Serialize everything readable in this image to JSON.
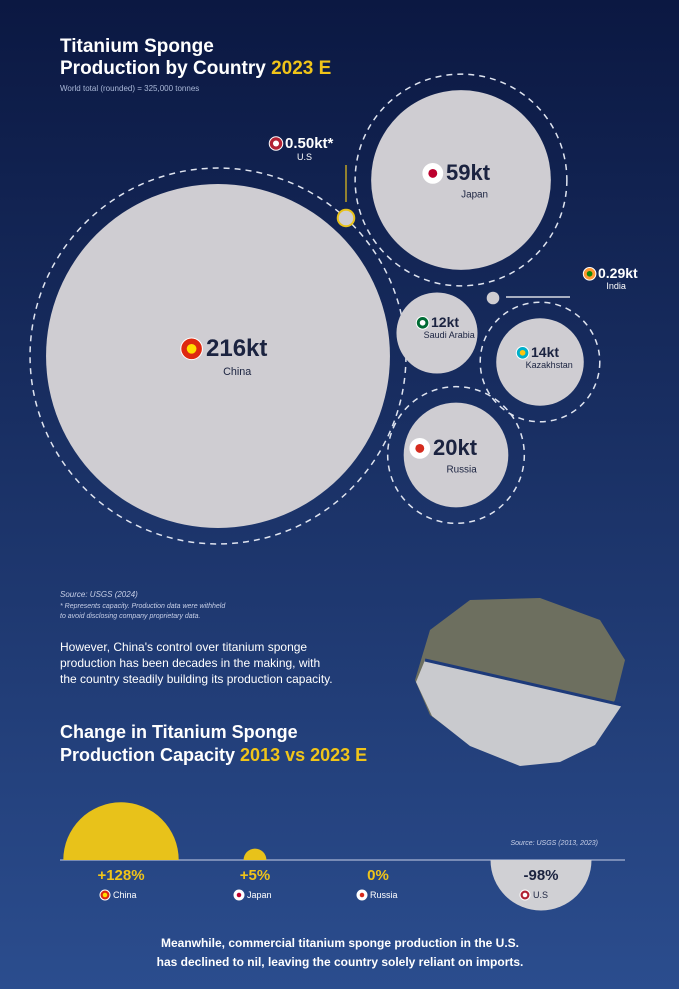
{
  "chart_data": [
    {
      "type": "bubble",
      "title_lines": [
        "Titanium Sponge",
        "Production by Country"
      ],
      "title_highlight": "2023 E",
      "subtitle": "World total (rounded) = 325,000 tonnes",
      "categories": [
        "China",
        "Japan",
        "U.S",
        "India",
        "Saudi Arabia",
        "Kazakhstan",
        "Russia"
      ],
      "values": [
        216,
        59,
        0.5,
        0.29,
        12,
        14,
        20
      ],
      "value_labels": [
        "216kt",
        "59kt",
        "0.50kt*",
        "0.29kt",
        "12kt",
        "14kt",
        "20kt"
      ],
      "color": "#cfcdd2"
    },
    {
      "type": "semicircle",
      "title_lines": [
        "Change in Titanium Sponge",
        "Production Capacity"
      ],
      "title_highlight": "2013 vs 2023 E",
      "categories": [
        "China",
        "Japan",
        "Russia",
        "U.S"
      ],
      "values": [
        128,
        5,
        0,
        -98
      ],
      "value_labels": [
        "+128%",
        "+5%",
        "0%",
        "-98%"
      ],
      "colors": [
        "#e8c21a",
        "#d0d0d4"
      ],
      "source": "Source: USGS (2013, 2023)"
    }
  ],
  "source": "Source: USGS (2024)",
  "note_lines": [
    "* Represents capacity. Production data were withheld",
    "to avoid disclosing company proprietary data."
  ],
  "paragraph_lines": [
    "However, China's control over titanium sponge",
    "production has been decades in the making, with",
    "the country steadily building its production capacity."
  ],
  "footer_lines": [
    "Meanwhile, commercial titanium sponge production in the U.S.",
    "has declined to nil, leaving the country solely reliant on imports."
  ]
}
